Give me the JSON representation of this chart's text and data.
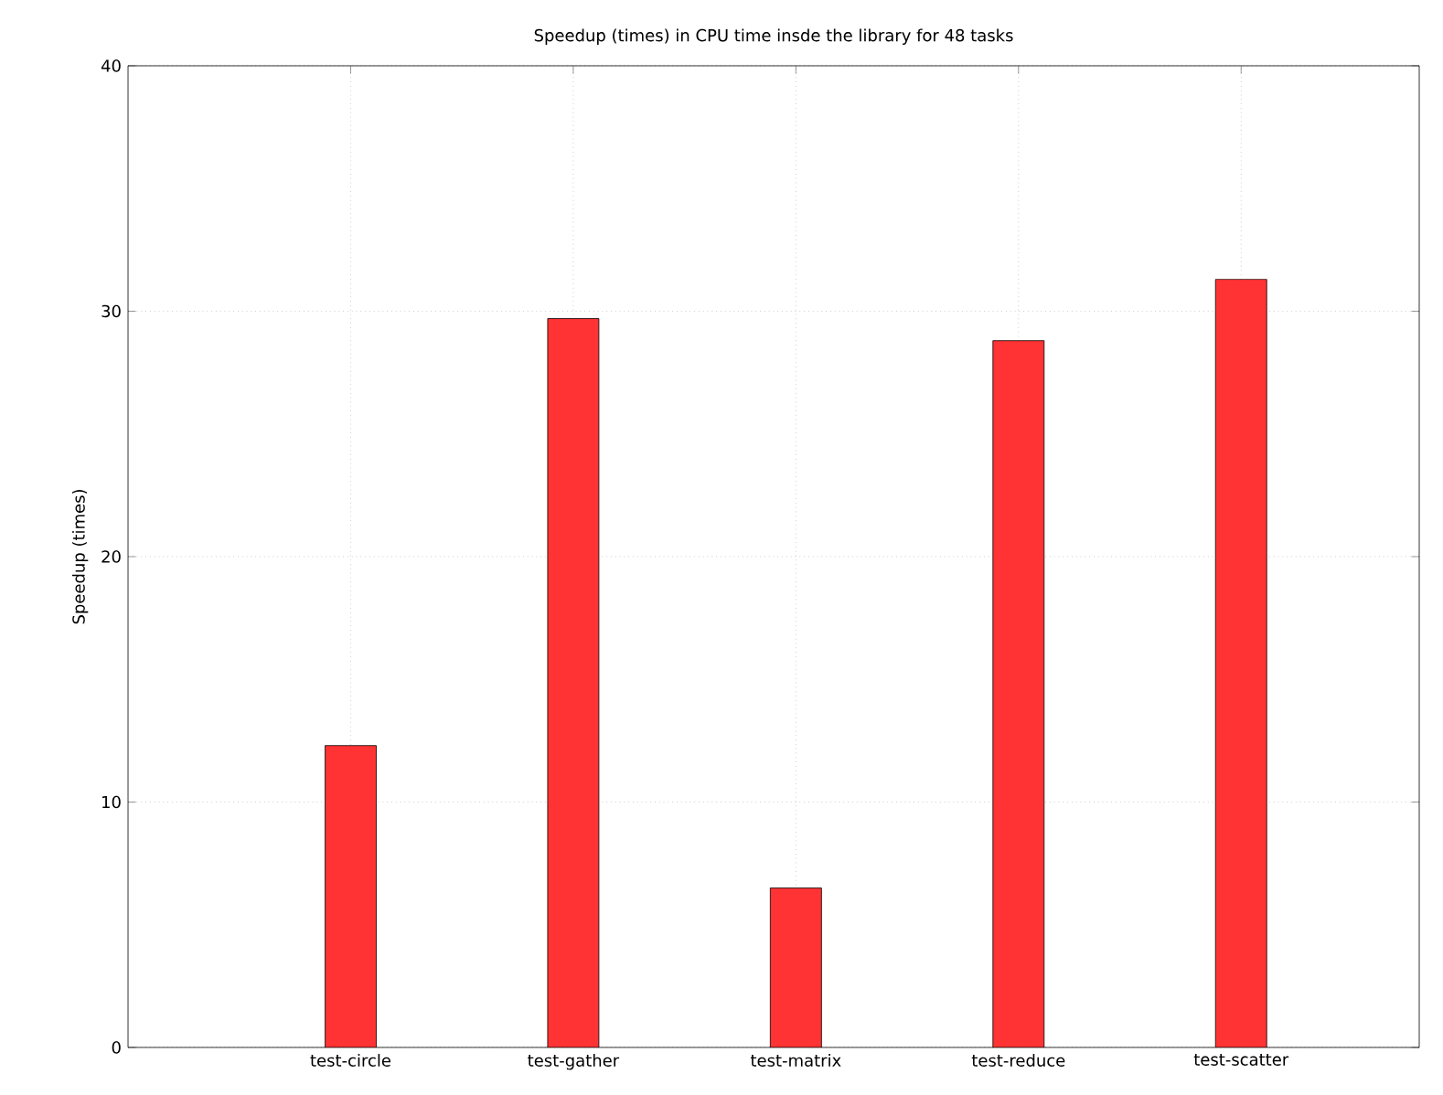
{
  "chart_data": {
    "type": "bar",
    "title": "Speedup (times) in CPU time insde the library for 48 tasks",
    "ylabel": "Speedup (times)",
    "categories": [
      "test-circle",
      "test-gather",
      "test-matrix",
      "test-reduce",
      "test-scatter"
    ],
    "values": [
      12.3,
      29.7,
      6.5,
      28.8,
      31.3
    ],
    "color": "#ff3333",
    "ylim": [
      0,
      40
    ],
    "yticks": [
      0,
      10,
      20,
      30,
      40
    ],
    "grid": true
  }
}
